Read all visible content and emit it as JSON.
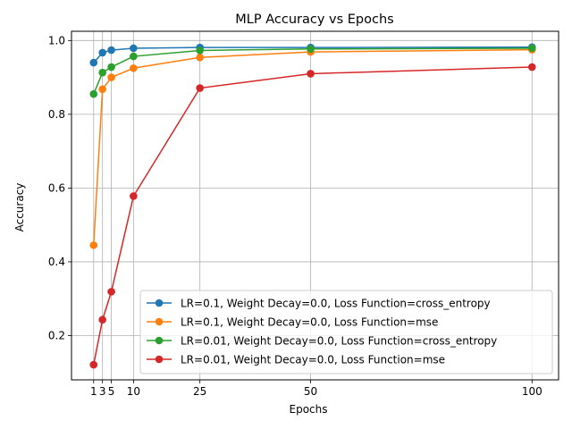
{
  "chart_data": {
    "type": "line",
    "title": "MLP Accuracy vs Epochs",
    "xlabel": "Epochs",
    "ylabel": "Accuracy",
    "x": [
      1,
      3,
      5,
      10,
      25,
      50,
      100
    ],
    "x_ticks": [
      1,
      3,
      5,
      10,
      25,
      50,
      100
    ],
    "y_ticks": [
      0.2,
      0.4,
      0.6,
      0.8,
      1.0
    ],
    "y_tick_labels": [
      "0.2",
      "0.4",
      "0.6",
      "0.8",
      "1.0"
    ],
    "xlim": [
      -4,
      106
    ],
    "ylim": [
      0.08,
      1.025
    ],
    "grid": true,
    "legend_position": "lower-right",
    "series": [
      {
        "name": "LR=0.1, Weight Decay=0.0, Loss Function=cross_entropy",
        "color": "#1f77b4",
        "values": [
          0.94,
          0.967,
          0.974,
          0.979,
          0.981,
          0.981,
          0.982
        ]
      },
      {
        "name": "LR=0.1, Weight Decay=0.0, Loss Function=mse",
        "color": "#ff7f0e",
        "values": [
          0.445,
          0.868,
          0.9,
          0.925,
          0.954,
          0.969,
          0.975
        ]
      },
      {
        "name": "LR=0.01, Weight Decay=0.0, Loss Function=cross_entropy",
        "color": "#2ca02c",
        "values": [
          0.855,
          0.913,
          0.928,
          0.957,
          0.973,
          0.977,
          0.979
        ]
      },
      {
        "name": "LR=0.01, Weight Decay=0.0, Loss Function=mse",
        "color": "#d62728",
        "values": [
          0.121,
          0.243,
          0.319,
          0.578,
          0.871,
          0.91,
          0.928
        ]
      }
    ]
  }
}
